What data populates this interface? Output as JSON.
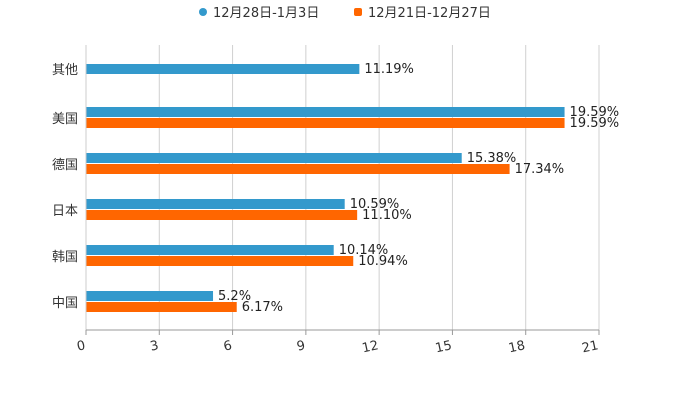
{
  "chart_data": {
    "type": "bar",
    "orientation": "horizontal",
    "categories": [
      "其他",
      "美国",
      "德国",
      "日本",
      "韩国",
      "中国"
    ],
    "series": [
      {
        "name": "12月28日-1月3日",
        "color": "#3399cc",
        "values": [
          11.19,
          19.59,
          15.38,
          10.59,
          10.14,
          5.2
        ],
        "labels": [
          "11.19%",
          "19.59%",
          "15.38%",
          "10.59%",
          "10.14%",
          "5.2%"
        ]
      },
      {
        "name": "12月21日-12月27日",
        "color": "#ff6600",
        "values": [
          null,
          19.59,
          17.34,
          11.1,
          10.94,
          6.17
        ],
        "labels": [
          null,
          "19.59%",
          "17.34%",
          "11.10%",
          "10.94%",
          "6.17%"
        ]
      }
    ],
    "xlim": [
      0,
      21
    ],
    "xticks": [
      "0",
      "3",
      "6",
      "9",
      "12",
      "15",
      "18",
      "21"
    ],
    "grid": true,
    "legend_position": "top-center",
    "title": "",
    "xlabel": "",
    "ylabel": ""
  }
}
